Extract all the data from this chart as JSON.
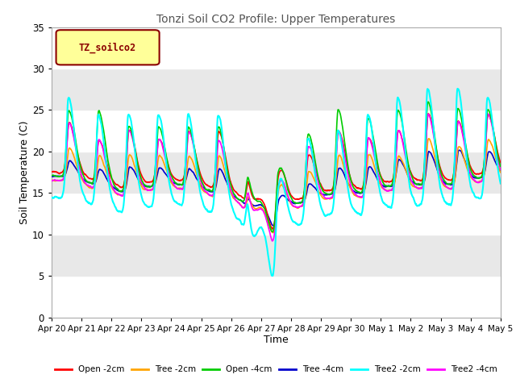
{
  "title": "Tonzi Soil CO2 Profile: Upper Temperatures",
  "xlabel": "Time",
  "ylabel": "Soil Temperature (C)",
  "ylim": [
    0,
    35
  ],
  "xlim": [
    0,
    15
  ],
  "yticks": [
    0,
    5,
    10,
    15,
    20,
    25,
    30,
    35
  ],
  "xtick_labels": [
    "Apr 20",
    "Apr 21",
    "Apr 22",
    "Apr 23",
    "Apr 24",
    "Apr 25",
    "Apr 26",
    "Apr 27",
    "Apr 28",
    "Apr 29",
    "Apr 30",
    "May 1",
    "May 2",
    "May 3",
    "May 4",
    "May 5"
  ],
  "legend_label": "TZ_soilco2",
  "legend_text_color": "#8B0000",
  "legend_box_color": "#FFFF99",
  "series": [
    {
      "label": "Open -2cm",
      "color": "#FF0000"
    },
    {
      "label": "Tree -2cm",
      "color": "#FFA500"
    },
    {
      "label": "Open -4cm",
      "color": "#00CC00"
    },
    {
      "label": "Tree -4cm",
      "color": "#0000CC"
    },
    {
      "label": "Tree2 -2cm",
      "color": "#00FFFF"
    },
    {
      "label": "Tree2 -4cm",
      "color": "#FF00FF"
    }
  ],
  "background_color": "#ffffff",
  "plot_bg_color": "#e8e8e8",
  "band_colors": [
    "#ffffff",
    "#e8e8e8"
  ]
}
